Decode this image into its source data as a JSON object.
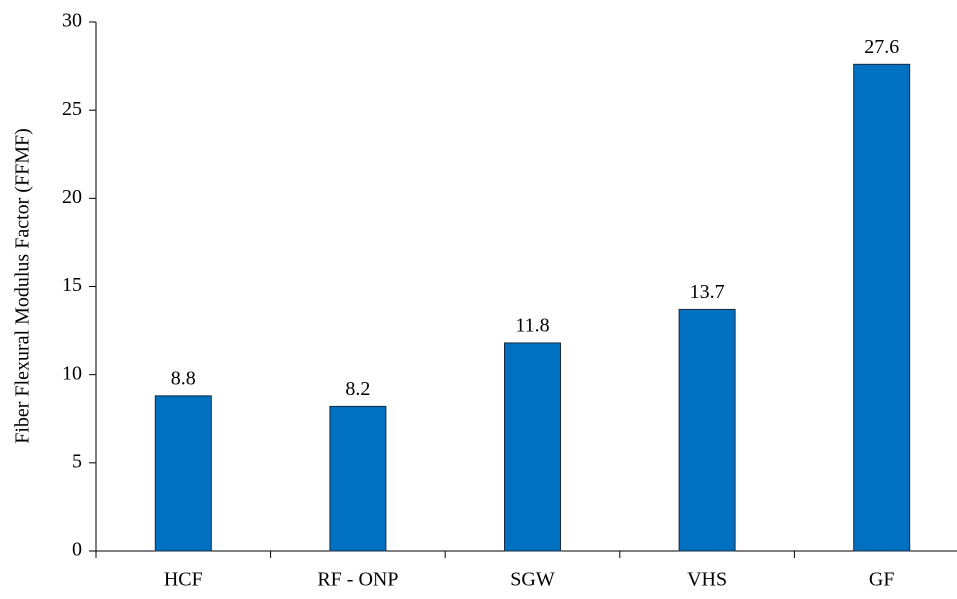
{
  "chart_data": {
    "type": "bar",
    "y_label": "Fiber Flexural Modulus Factor (FFMF)",
    "categories": [
      "HCF",
      "RF - ONP",
      "SGW",
      "VHS",
      "GF"
    ],
    "values": [
      8.8,
      8.2,
      11.8,
      13.7,
      27.6
    ],
    "color": "#0070c0",
    "ylim": [
      0,
      30
    ],
    "yticks": [
      0,
      5,
      10,
      15,
      20,
      25,
      30
    ],
    "grid": false
  }
}
